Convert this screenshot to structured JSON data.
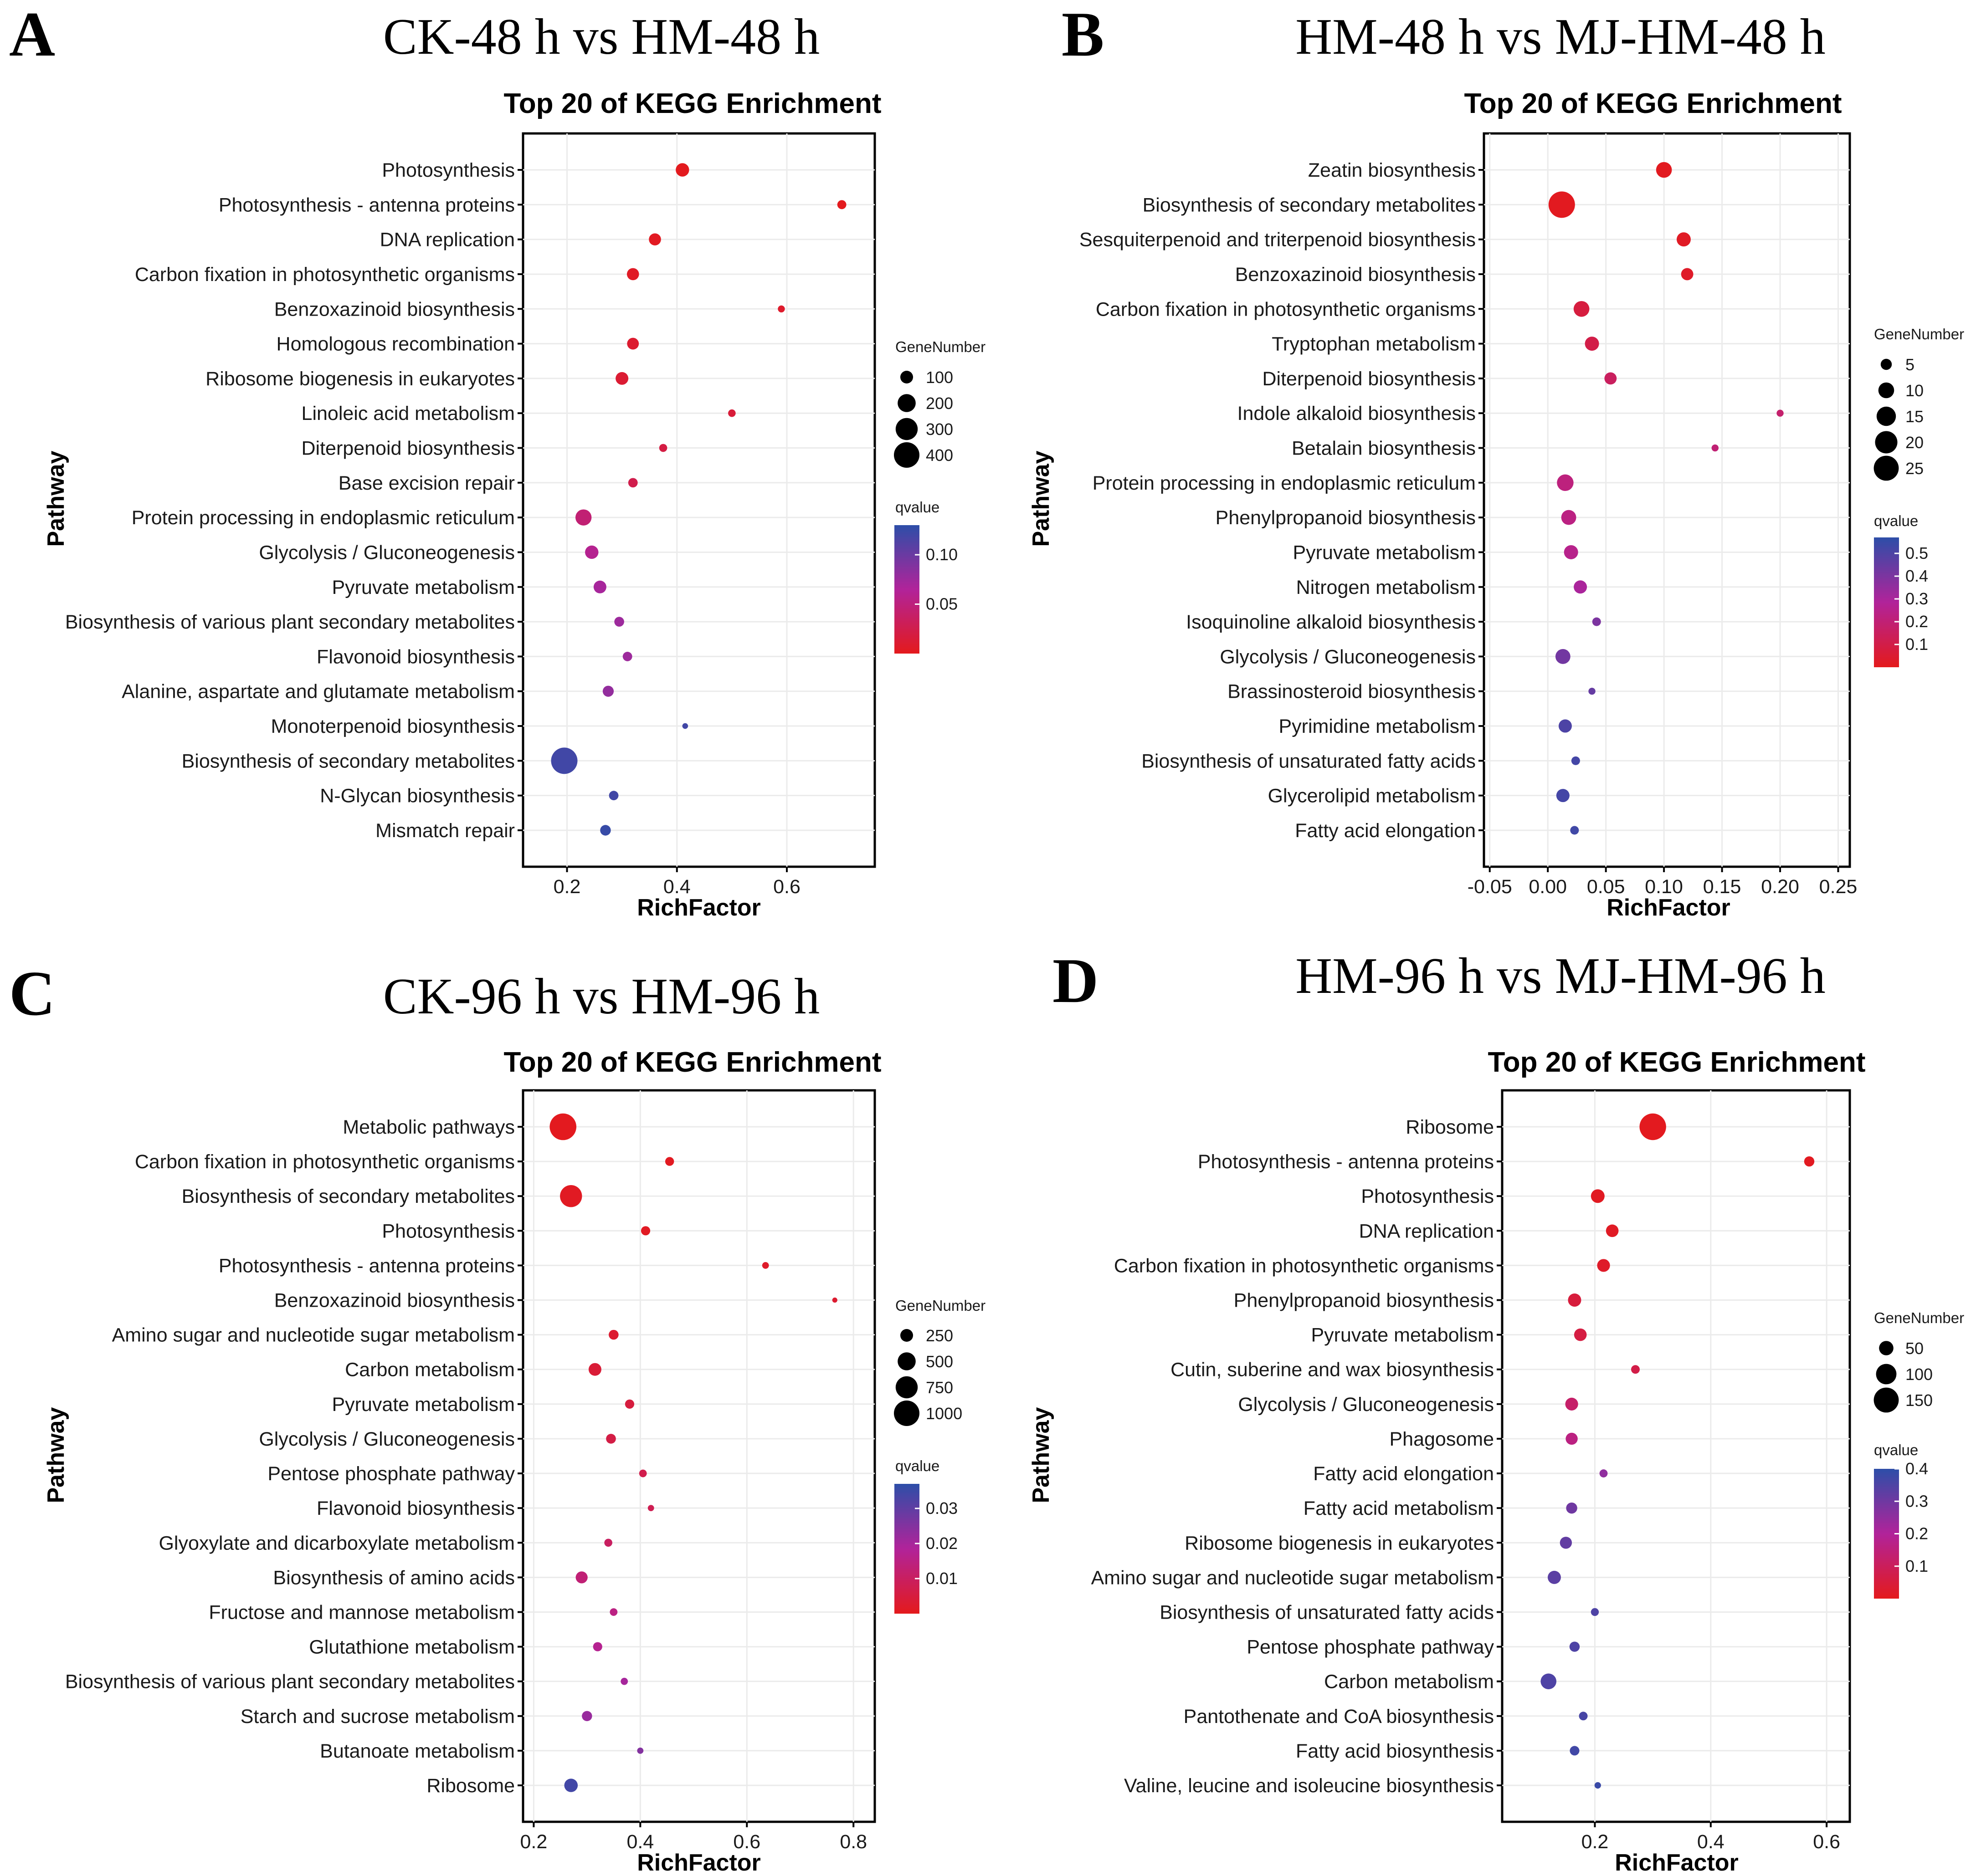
{
  "colors": {
    "low_q": "#e41a1c",
    "mid_q": "#b1239a",
    "high_q": "#2d4ea8"
  },
  "chart_data": [
    {
      "type": "scatter",
      "panel_label": "A",
      "main_title": "CK-48 h vs HM-48 h",
      "title": "Top 20 of KEGG Enrichment",
      "xlabel": "RichFactor",
      "ylabel": "Pathway",
      "xlim": [
        0.12,
        0.76
      ],
      "xticks": [
        {
          "v": 0.2,
          "label": "0.2"
        },
        {
          "v": 0.4,
          "label": "0.4"
        },
        {
          "v": 0.6,
          "label": "0.6"
        }
      ],
      "size_legend": {
        "title": "GeneNumber",
        "values": [
          100,
          200,
          300,
          400
        ],
        "labels": [
          "100",
          "200",
          "300",
          "400"
        ],
        "max": 460
      },
      "color_legend": {
        "title": "qvalue",
        "min": 0.0,
        "max": 0.13,
        "ticks": [
          {
            "v": 0.1,
            "label": "0.10"
          },
          {
            "v": 0.05,
            "label": "0.05"
          }
        ]
      },
      "points": [
        {
          "pathway": "Photosynthesis",
          "rich": 0.41,
          "genes": 110,
          "q": 0.001
        },
        {
          "pathway": "Photosynthesis - antenna proteins",
          "rich": 0.7,
          "genes": 50,
          "q": 0.001
        },
        {
          "pathway": "DNA replication",
          "rich": 0.36,
          "genes": 90,
          "q": 0.003
        },
        {
          "pathway": "Carbon fixation in photosynthetic organisms",
          "rich": 0.32,
          "genes": 90,
          "q": 0.005
        },
        {
          "pathway": "Benzoxazinoid biosynthesis",
          "rich": 0.59,
          "genes": 30,
          "q": 0.008
        },
        {
          "pathway": "Homologous recombination",
          "rich": 0.32,
          "genes": 85,
          "q": 0.01
        },
        {
          "pathway": "Ribosome biogenesis in eukaryotes",
          "rich": 0.3,
          "genes": 100,
          "q": 0.012
        },
        {
          "pathway": "Linoleic acid metabolism",
          "rich": 0.5,
          "genes": 35,
          "q": 0.015
        },
        {
          "pathway": "Diterpenoid biosynthesis",
          "rich": 0.375,
          "genes": 40,
          "q": 0.02
        },
        {
          "pathway": "Base excision repair",
          "rich": 0.32,
          "genes": 55,
          "q": 0.025
        },
        {
          "pathway": "Protein processing in endoplasmic reticulum",
          "rich": 0.23,
          "genes": 160,
          "q": 0.045
        },
        {
          "pathway": "Glycolysis / Gluconeogenesis",
          "rich": 0.245,
          "genes": 110,
          "q": 0.06
        },
        {
          "pathway": "Pyruvate metabolism",
          "rich": 0.26,
          "genes": 100,
          "q": 0.07
        },
        {
          "pathway": "Biosynthesis of various plant secondary metabolites",
          "rich": 0.295,
          "genes": 60,
          "q": 0.075
        },
        {
          "pathway": "Flavonoid biosynthesis",
          "rich": 0.31,
          "genes": 55,
          "q": 0.075
        },
        {
          "pathway": "Alanine, aspartate and glutamate metabolism",
          "rich": 0.275,
          "genes": 75,
          "q": 0.08
        },
        {
          "pathway": "Monoterpenoid biosynthesis",
          "rich": 0.415,
          "genes": 20,
          "q": 0.12
        },
        {
          "pathway": "Biosynthesis of secondary metabolites",
          "rich": 0.195,
          "genes": 430,
          "q": 0.12
        },
        {
          "pathway": "N-Glycan biosynthesis",
          "rich": 0.285,
          "genes": 55,
          "q": 0.12
        },
        {
          "pathway": "Mismatch repair",
          "rich": 0.27,
          "genes": 70,
          "q": 0.125
        }
      ]
    },
    {
      "type": "scatter",
      "panel_label": "B",
      "main_title": "HM-48 h vs MJ-HM-48 h",
      "title": "Top 20 of KEGG Enrichment",
      "xlabel": "RichFactor",
      "ylabel": "Pathway",
      "xlim": [
        -0.055,
        0.26
      ],
      "xticks": [
        {
          "v": -0.05,
          "label": "-0.05"
        },
        {
          "v": 0.0,
          "label": "0.00"
        },
        {
          "v": 0.05,
          "label": "0.05"
        },
        {
          "v": 0.1,
          "label": "0.10"
        },
        {
          "v": 0.15,
          "label": "0.15"
        },
        {
          "v": 0.2,
          "label": "0.20"
        },
        {
          "v": 0.25,
          "label": "0.25"
        }
      ],
      "size_legend": {
        "title": "GeneNumber",
        "values": [
          5,
          10,
          15,
          20,
          25
        ],
        "labels": [
          "5",
          "10",
          "15",
          "20",
          "25"
        ],
        "max": 30
      },
      "color_legend": {
        "title": "qvalue",
        "min": 0.0,
        "max": 0.57,
        "ticks": [
          {
            "v": 0.5,
            "label": "0.5"
          },
          {
            "v": 0.4,
            "label": "0.4"
          },
          {
            "v": 0.3,
            "label": "0.3"
          },
          {
            "v": 0.2,
            "label": "0.2"
          },
          {
            "v": 0.1,
            "label": "0.1"
          }
        ]
      },
      "points": [
        {
          "pathway": "Zeatin biosynthesis",
          "rich": 0.1,
          "genes": 10,
          "q": 0.01
        },
        {
          "pathway": "Biosynthesis of secondary metabolites",
          "rich": 0.012,
          "genes": 28,
          "q": 0.01
        },
        {
          "pathway": "Sesquiterpenoid and triterpenoid biosynthesis",
          "rich": 0.117,
          "genes": 8,
          "q": 0.02
        },
        {
          "pathway": "Benzoxazinoid biosynthesis",
          "rich": 0.12,
          "genes": 6,
          "q": 0.03
        },
        {
          "pathway": "Carbon fixation in photosynthetic organisms",
          "rich": 0.029,
          "genes": 10,
          "q": 0.08
        },
        {
          "pathway": "Tryptophan metabolism",
          "rich": 0.038,
          "genes": 8,
          "q": 0.1
        },
        {
          "pathway": "Diterpenoid biosynthesis",
          "rich": 0.054,
          "genes": 6,
          "q": 0.15
        },
        {
          "pathway": "Indole alkaloid biosynthesis",
          "rich": 0.2,
          "genes": 2,
          "q": 0.18
        },
        {
          "pathway": "Betalain biosynthesis",
          "rich": 0.144,
          "genes": 2,
          "q": 0.2
        },
        {
          "pathway": "Protein processing in endoplasmic reticulum",
          "rich": 0.015,
          "genes": 11,
          "q": 0.22
        },
        {
          "pathway": "Phenylpropanoid biosynthesis",
          "rich": 0.018,
          "genes": 9,
          "q": 0.23
        },
        {
          "pathway": "Pyruvate metabolism",
          "rich": 0.02,
          "genes": 8,
          "q": 0.25
        },
        {
          "pathway": "Nitrogen metabolism",
          "rich": 0.028,
          "genes": 7,
          "q": 0.3
        },
        {
          "pathway": "Isoquinoline alkaloid biosynthesis",
          "rich": 0.042,
          "genes": 3,
          "q": 0.4
        },
        {
          "pathway": "Glycolysis / Gluconeogenesis",
          "rich": 0.013,
          "genes": 9,
          "q": 0.42
        },
        {
          "pathway": "Brassinosteroid biosynthesis",
          "rich": 0.038,
          "genes": 2,
          "q": 0.45
        },
        {
          "pathway": "Pyrimidine metabolism",
          "rich": 0.015,
          "genes": 7,
          "q": 0.5
        },
        {
          "pathway": "Biosynthesis of unsaturated fatty acids",
          "rich": 0.024,
          "genes": 3,
          "q": 0.52
        },
        {
          "pathway": "Glycerolipid metabolism",
          "rich": 0.013,
          "genes": 7,
          "q": 0.52
        },
        {
          "pathway": "Fatty acid elongation",
          "rich": 0.023,
          "genes": 3,
          "q": 0.53
        }
      ]
    },
    {
      "type": "scatter",
      "panel_label": "C",
      "main_title": "CK-96 h vs HM-96 h",
      "title": "Top 20 of KEGG Enrichment",
      "xlabel": "RichFactor",
      "ylabel": "Pathway",
      "xlim": [
        0.18,
        0.84
      ],
      "xticks": [
        {
          "v": 0.2,
          "label": "0.2"
        },
        {
          "v": 0.4,
          "label": "0.4"
        },
        {
          "v": 0.6,
          "label": "0.6"
        },
        {
          "v": 0.8,
          "label": "0.8"
        }
      ],
      "size_legend": {
        "title": "GeneNumber",
        "values": [
          250,
          500,
          750,
          1000
        ],
        "labels": [
          "250",
          "500",
          "750",
          "1000"
        ],
        "max": 1150
      },
      "color_legend": {
        "title": "qvalue",
        "min": 0.0,
        "max": 0.037,
        "ticks": [
          {
            "v": 0.03,
            "label": "0.03"
          },
          {
            "v": 0.02,
            "label": "0.02"
          },
          {
            "v": 0.01,
            "label": "0.01"
          }
        ]
      },
      "points": [
        {
          "pathway": "Metabolic pathways",
          "rich": 0.255,
          "genes": 1100,
          "q": 0.0005
        },
        {
          "pathway": "Carbon fixation in photosynthetic organisms",
          "rich": 0.455,
          "genes": 120,
          "q": 0.0008
        },
        {
          "pathway": "Biosynthesis of secondary metabolites",
          "rich": 0.27,
          "genes": 750,
          "q": 0.001
        },
        {
          "pathway": "Photosynthesis",
          "rich": 0.41,
          "genes": 130,
          "q": 0.001
        },
        {
          "pathway": "Photosynthesis - antenna proteins",
          "rich": 0.635,
          "genes": 70,
          "q": 0.002
        },
        {
          "pathway": "Benzoxazinoid biosynthesis",
          "rich": 0.765,
          "genes": 40,
          "q": 0.003
        },
        {
          "pathway": "Amino sugar and nucleotide sugar metabolism",
          "rich": 0.35,
          "genes": 150,
          "q": 0.003
        },
        {
          "pathway": "Carbon metabolism",
          "rich": 0.315,
          "genes": 250,
          "q": 0.004
        },
        {
          "pathway": "Pyruvate metabolism",
          "rich": 0.38,
          "genes": 130,
          "q": 0.005
        },
        {
          "pathway": "Glycolysis / Gluconeogenesis",
          "rich": 0.345,
          "genes": 150,
          "q": 0.006
        },
        {
          "pathway": "Pentose phosphate pathway",
          "rich": 0.405,
          "genes": 90,
          "q": 0.007
        },
        {
          "pathway": "Flavonoid biosynthesis",
          "rich": 0.42,
          "genes": 60,
          "q": 0.008
        },
        {
          "pathway": "Glyoxylate and dicarboxylate metabolism",
          "rich": 0.34,
          "genes": 100,
          "q": 0.01
        },
        {
          "pathway": "Biosynthesis of amino acids",
          "rich": 0.29,
          "genes": 220,
          "q": 0.013
        },
        {
          "pathway": "Fructose and mannose metabolism",
          "rich": 0.35,
          "genes": 90,
          "q": 0.015
        },
        {
          "pathway": "Glutathione metabolism",
          "rich": 0.32,
          "genes": 130,
          "q": 0.017
        },
        {
          "pathway": "Biosynthesis of various plant secondary metabolites",
          "rich": 0.37,
          "genes": 80,
          "q": 0.02
        },
        {
          "pathway": "Starch and sucrose metabolism",
          "rich": 0.3,
          "genes": 160,
          "q": 0.022
        },
        {
          "pathway": "Butanoate metabolism",
          "rich": 0.4,
          "genes": 60,
          "q": 0.025
        },
        {
          "pathway": "Ribosome",
          "rich": 0.27,
          "genes": 280,
          "q": 0.034
        }
      ]
    },
    {
      "type": "scatter",
      "panel_label": "D",
      "main_title": "HM-96 h vs MJ-HM-96 h",
      "title": "Top 20 of KEGG Enrichment",
      "xlabel": "RichFactor",
      "ylabel": "Pathway",
      "xlim": [
        0.04,
        0.64
      ],
      "xticks": [
        {
          "v": 0.2,
          "label": "0.2"
        },
        {
          "v": 0.4,
          "label": "0.4"
        },
        {
          "v": 0.6,
          "label": "0.6"
        }
      ],
      "size_legend": {
        "title": "GeneNumber",
        "values": [
          50,
          100,
          150
        ],
        "labels": [
          "50",
          "100",
          "150"
        ],
        "max": 180
      },
      "color_legend": {
        "title": "qvalue",
        "min": 0.0,
        "max": 0.4,
        "ticks": [
          {
            "v": 0.4,
            "label": "0.4"
          },
          {
            "v": 0.3,
            "label": "0.3"
          },
          {
            "v": 0.2,
            "label": "0.2"
          },
          {
            "v": 0.1,
            "label": "0.1"
          }
        ]
      },
      "points": [
        {
          "pathway": "Ribosome",
          "rich": 0.3,
          "genes": 170,
          "q": 0.005
        },
        {
          "pathway": "Photosynthesis - antenna proteins",
          "rich": 0.57,
          "genes": 25,
          "q": 0.008
        },
        {
          "pathway": "Photosynthesis",
          "rich": 0.205,
          "genes": 45,
          "q": 0.01
        },
        {
          "pathway": "DNA replication",
          "rich": 0.23,
          "genes": 38,
          "q": 0.015
        },
        {
          "pathway": "Carbon fixation in photosynthetic organisms",
          "rich": 0.215,
          "genes": 40,
          "q": 0.02
        },
        {
          "pathway": "Phenylpropanoid biosynthesis",
          "rich": 0.165,
          "genes": 42,
          "q": 0.05
        },
        {
          "pathway": "Pyruvate metabolism",
          "rich": 0.175,
          "genes": 38,
          "q": 0.06
        },
        {
          "pathway": "Cutin, suberine and wax biosynthesis",
          "rich": 0.27,
          "genes": 18,
          "q": 0.07
        },
        {
          "pathway": "Glycolysis / Gluconeogenesis",
          "rich": 0.16,
          "genes": 40,
          "q": 0.12
        },
        {
          "pathway": "Phagosome",
          "rich": 0.16,
          "genes": 35,
          "q": 0.16
        },
        {
          "pathway": "Fatty acid elongation",
          "rich": 0.215,
          "genes": 16,
          "q": 0.25
        },
        {
          "pathway": "Fatty acid metabolism",
          "rich": 0.16,
          "genes": 30,
          "q": 0.3
        },
        {
          "pathway": "Ribosome biogenesis in eukaryotes",
          "rich": 0.15,
          "genes": 35,
          "q": 0.32
        },
        {
          "pathway": "Amino sugar and nucleotide sugar metabolism",
          "rich": 0.13,
          "genes": 42,
          "q": 0.33
        },
        {
          "pathway": "Biosynthesis of unsaturated fatty acids",
          "rich": 0.2,
          "genes": 15,
          "q": 0.35
        },
        {
          "pathway": "Pentose phosphate pathway",
          "rich": 0.165,
          "genes": 25,
          "q": 0.35
        },
        {
          "pathway": "Carbon metabolism",
          "rich": 0.12,
          "genes": 60,
          "q": 0.35
        },
        {
          "pathway": "Pantothenate and CoA biosynthesis",
          "rich": 0.18,
          "genes": 18,
          "q": 0.36
        },
        {
          "pathway": "Fatty acid biosynthesis",
          "rich": 0.165,
          "genes": 22,
          "q": 0.37
        },
        {
          "pathway": "Valine, leucine and isoleucine biosynthesis",
          "rich": 0.205,
          "genes": 10,
          "q": 0.38
        }
      ]
    }
  ]
}
